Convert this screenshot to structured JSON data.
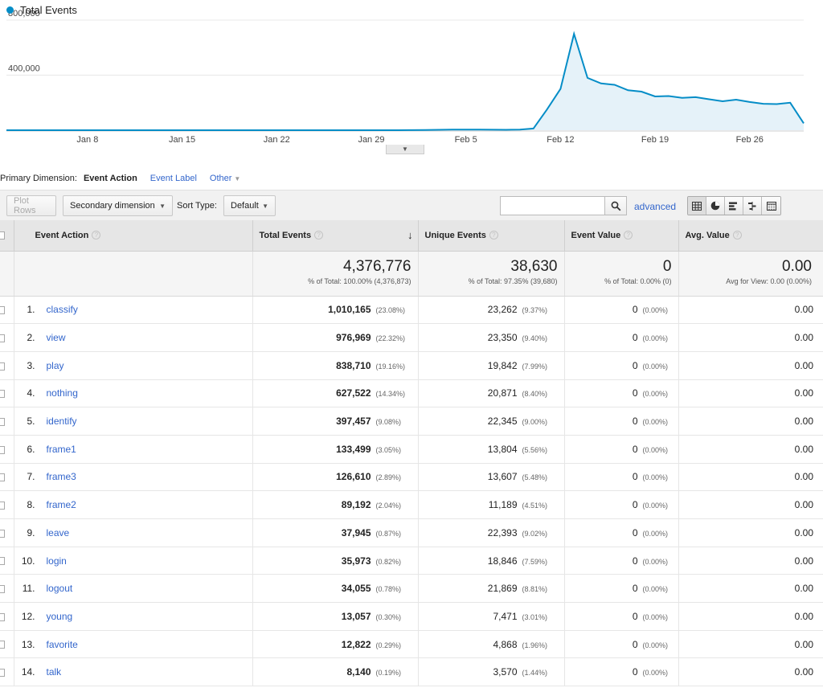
{
  "chart": {
    "legend": "Total Events",
    "series_color": "#058dc7"
  },
  "chart_data": {
    "type": "area",
    "title": "",
    "series": [
      {
        "name": "Total Events",
        "values": [
          0,
          0,
          0,
          0,
          0,
          0,
          0,
          0,
          0,
          0,
          0,
          0,
          0,
          0,
          0,
          0,
          0,
          0,
          0,
          0,
          0,
          0,
          0,
          0,
          0,
          0,
          0,
          0,
          0,
          0,
          500,
          1500,
          3000,
          4000,
          4500,
          4000,
          3500,
          3000,
          4500,
          12000,
          150000,
          300000,
          700000,
          380000,
          340000,
          330000,
          290000,
          280000,
          245000,
          248000,
          235000,
          240000,
          225000,
          210000,
          222000,
          205000,
          192000,
          190000,
          200000,
          50000
        ]
      }
    ],
    "x_labels": [
      "Jan 8",
      "Jan 15",
      "Jan 22",
      "Jan 29",
      "Feb 5",
      "Feb 12",
      "Feb 19",
      "Feb 26"
    ],
    "x_label_index": [
      6,
      13,
      20,
      27,
      34,
      41,
      48,
      55
    ],
    "y_ticks": [
      {
        "value": 400000,
        "label": "400,000"
      },
      {
        "value": 800000,
        "label": "800,000"
      }
    ],
    "ylim": [
      0,
      800000
    ],
    "grid": true,
    "legend": "top-left"
  },
  "primary_dimension": {
    "label": "Primary Dimension:",
    "active": "Event Action",
    "options": [
      "Event Label",
      "Other"
    ]
  },
  "toolbar": {
    "plot_rows": "Plot Rows",
    "secondary_dimension": "Secondary dimension",
    "sort_type_label": "Sort Type:",
    "sort_type_value": "Default",
    "search_value": "",
    "advanced": "advanced"
  },
  "table": {
    "headers": {
      "event_action": "Event Action",
      "total_events": "Total Events",
      "unique_events": "Unique Events",
      "event_value": "Event Value",
      "avg_value": "Avg. Value"
    },
    "totals": {
      "total_events": "4,376,776",
      "total_events_sub": "% of Total: 100.00% (4,376,873)",
      "unique_events": "38,630",
      "unique_events_sub": "% of Total: 97.35% (39,680)",
      "event_value": "0",
      "event_value_sub": "% of Total: 0.00% (0)",
      "avg_value": "0.00",
      "avg_value_sub": "Avg for View: 0.00 (0.00%)"
    },
    "rows": [
      {
        "num": "1.",
        "action": "classify",
        "total": "1,010,165",
        "total_pct": "(23.08%)",
        "unique": "23,262",
        "unique_pct": "(9.37%)",
        "value": "0",
        "value_pct": "(0.00%)",
        "avg": "0.00"
      },
      {
        "num": "2.",
        "action": "view",
        "total": "976,969",
        "total_pct": "(22.32%)",
        "unique": "23,350",
        "unique_pct": "(9.40%)",
        "value": "0",
        "value_pct": "(0.00%)",
        "avg": "0.00"
      },
      {
        "num": "3.",
        "action": "play",
        "total": "838,710",
        "total_pct": "(19.16%)",
        "unique": "19,842",
        "unique_pct": "(7.99%)",
        "value": "0",
        "value_pct": "(0.00%)",
        "avg": "0.00"
      },
      {
        "num": "4.",
        "action": "nothing",
        "total": "627,522",
        "total_pct": "(14.34%)",
        "unique": "20,871",
        "unique_pct": "(8.40%)",
        "value": "0",
        "value_pct": "(0.00%)",
        "avg": "0.00"
      },
      {
        "num": "5.",
        "action": "identify",
        "total": "397,457",
        "total_pct": "(9.08%)",
        "unique": "22,345",
        "unique_pct": "(9.00%)",
        "value": "0",
        "value_pct": "(0.00%)",
        "avg": "0.00"
      },
      {
        "num": "6.",
        "action": "frame1",
        "total": "133,499",
        "total_pct": "(3.05%)",
        "unique": "13,804",
        "unique_pct": "(5.56%)",
        "value": "0",
        "value_pct": "(0.00%)",
        "avg": "0.00"
      },
      {
        "num": "7.",
        "action": "frame3",
        "total": "126,610",
        "total_pct": "(2.89%)",
        "unique": "13,607",
        "unique_pct": "(5.48%)",
        "value": "0",
        "value_pct": "(0.00%)",
        "avg": "0.00"
      },
      {
        "num": "8.",
        "action": "frame2",
        "total": "89,192",
        "total_pct": "(2.04%)",
        "unique": "11,189",
        "unique_pct": "(4.51%)",
        "value": "0",
        "value_pct": "(0.00%)",
        "avg": "0.00"
      },
      {
        "num": "9.",
        "action": "leave",
        "total": "37,945",
        "total_pct": "(0.87%)",
        "unique": "22,393",
        "unique_pct": "(9.02%)",
        "value": "0",
        "value_pct": "(0.00%)",
        "avg": "0.00"
      },
      {
        "num": "10.",
        "action": "login",
        "total": "35,973",
        "total_pct": "(0.82%)",
        "unique": "18,846",
        "unique_pct": "(7.59%)",
        "value": "0",
        "value_pct": "(0.00%)",
        "avg": "0.00"
      },
      {
        "num": "11.",
        "action": "logout",
        "total": "34,055",
        "total_pct": "(0.78%)",
        "unique": "21,869",
        "unique_pct": "(8.81%)",
        "value": "0",
        "value_pct": "(0.00%)",
        "avg": "0.00"
      },
      {
        "num": "12.",
        "action": "young",
        "total": "13,057",
        "total_pct": "(0.30%)",
        "unique": "7,471",
        "unique_pct": "(3.01%)",
        "value": "0",
        "value_pct": "(0.00%)",
        "avg": "0.00"
      },
      {
        "num": "13.",
        "action": "favorite",
        "total": "12,822",
        "total_pct": "(0.29%)",
        "unique": "4,868",
        "unique_pct": "(1.96%)",
        "value": "0",
        "value_pct": "(0.00%)",
        "avg": "0.00"
      },
      {
        "num": "14.",
        "action": "talk",
        "total": "8,140",
        "total_pct": "(0.19%)",
        "unique": "3,570",
        "unique_pct": "(1.44%)",
        "value": "0",
        "value_pct": "(0.00%)",
        "avg": "0.00"
      }
    ]
  },
  "icons": {
    "search": "magnifier-icon",
    "views": [
      "table-view-icon",
      "pie-view-icon",
      "bar-view-icon",
      "comparison-view-icon",
      "pivot-view-icon"
    ]
  }
}
